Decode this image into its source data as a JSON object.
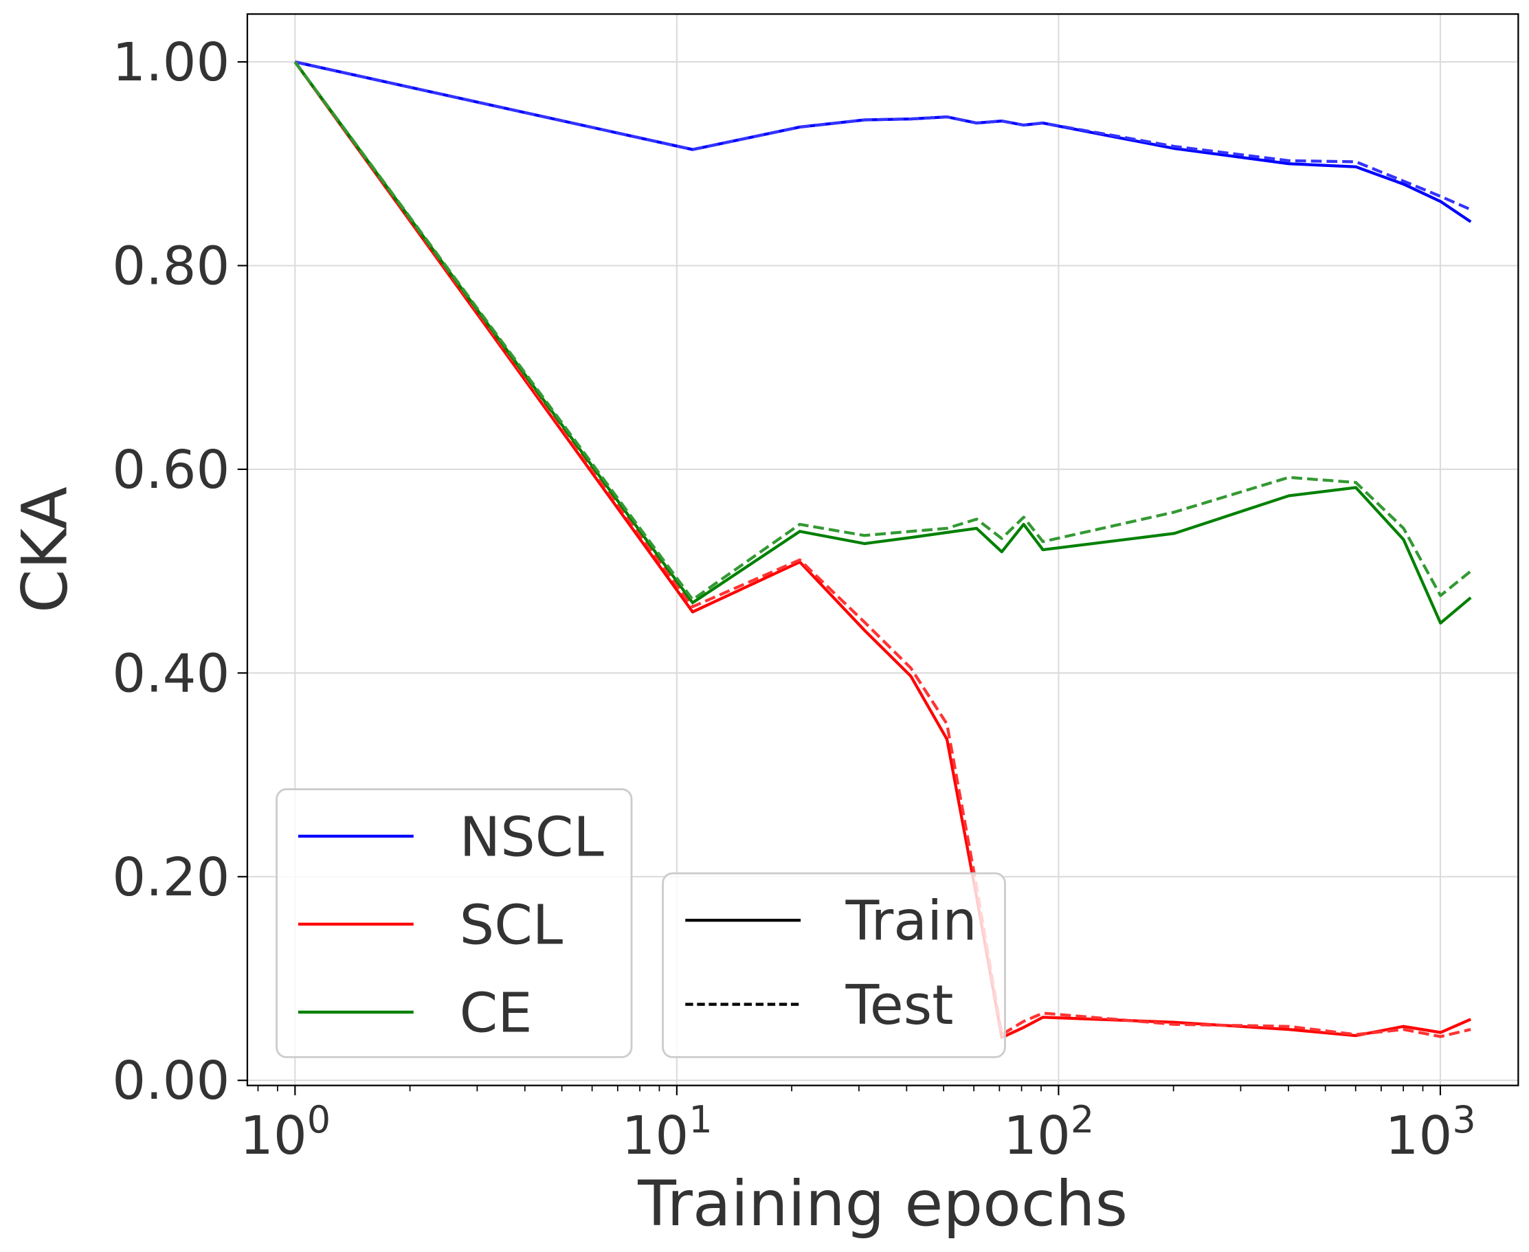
{
  "chart_data": {
    "type": "line",
    "xlabel": "Training epochs",
    "ylabel": "CKA",
    "xscale": "log",
    "xlim": [
      0.75,
      1600
    ],
    "ylim": [
      -0.005,
      1.047
    ],
    "grid": true,
    "x_tick_labels": [
      {
        "base": "10",
        "exp": "0",
        "value": 1
      },
      {
        "base": "10",
        "exp": "1",
        "value": 10
      },
      {
        "base": "10",
        "exp": "2",
        "value": 100
      },
      {
        "base": "10",
        "exp": "3",
        "value": 1000
      }
    ],
    "y_ticks": [
      0,
      0.2,
      0.4,
      0.6,
      0.8,
      1.0
    ],
    "y_tick_labels": [
      "0.00",
      "0.20",
      "0.40",
      "0.60",
      "0.80",
      "1.00"
    ],
    "x": [
      1,
      11,
      21,
      31,
      41,
      51,
      61,
      71,
      81,
      91,
      201,
      401,
      601,
      801,
      1001,
      1201
    ],
    "series": [
      {
        "name": "NSCL",
        "split": "Train",
        "color": "#0000ff",
        "dash": false,
        "values": [
          1.0,
          0.914,
          0.936,
          0.943,
          0.944,
          0.946,
          0.94,
          0.942,
          0.938,
          0.94,
          0.915,
          0.9,
          0.897,
          0.88,
          0.863,
          0.843
        ]
      },
      {
        "name": "NSCL",
        "split": "Test",
        "color": "#3333ff",
        "dash": true,
        "values": [
          1.0,
          0.914,
          0.936,
          0.943,
          0.944,
          0.946,
          0.94,
          0.942,
          0.938,
          0.94,
          0.917,
          0.903,
          0.902,
          0.883,
          0.868,
          0.855
        ]
      },
      {
        "name": "SCL",
        "split": "Train",
        "color": "#ff0000",
        "dash": false,
        "values": [
          1.0,
          0.46,
          0.509,
          0.442,
          0.397,
          0.335,
          0.18,
          0.042,
          0.052,
          0.062,
          0.057,
          0.05,
          0.044,
          0.053,
          0.047,
          0.06
        ]
      },
      {
        "name": "SCL",
        "split": "Test",
        "color": "#ff3333",
        "dash": true,
        "values": [
          1.0,
          0.465,
          0.511,
          0.45,
          0.405,
          0.35,
          0.19,
          0.045,
          0.058,
          0.066,
          0.055,
          0.053,
          0.045,
          0.05,
          0.043,
          0.05
        ]
      },
      {
        "name": "CE",
        "split": "Train",
        "color": "#008000",
        "dash": false,
        "values": [
          1.0,
          0.469,
          0.539,
          0.527,
          0.533,
          0.538,
          0.542,
          0.519,
          0.546,
          0.521,
          0.537,
          0.574,
          0.582,
          0.531,
          0.449,
          0.474
        ]
      },
      {
        "name": "CE",
        "split": "Test",
        "color": "#339933",
        "dash": true,
        "values": [
          1.0,
          0.472,
          0.546,
          0.535,
          0.539,
          0.542,
          0.551,
          0.532,
          0.553,
          0.529,
          0.558,
          0.592,
          0.587,
          0.542,
          0.476,
          0.5
        ]
      }
    ],
    "legend_methods": [
      {
        "label": "NSCL",
        "color": "#0000ff"
      },
      {
        "label": "SCL",
        "color": "#ff0000"
      },
      {
        "label": "CE",
        "color": "#008000"
      }
    ],
    "legend_splits": [
      {
        "label": "Train",
        "dash": false
      },
      {
        "label": "Test",
        "dash": true
      }
    ],
    "legend_placement": "lower-left"
  }
}
